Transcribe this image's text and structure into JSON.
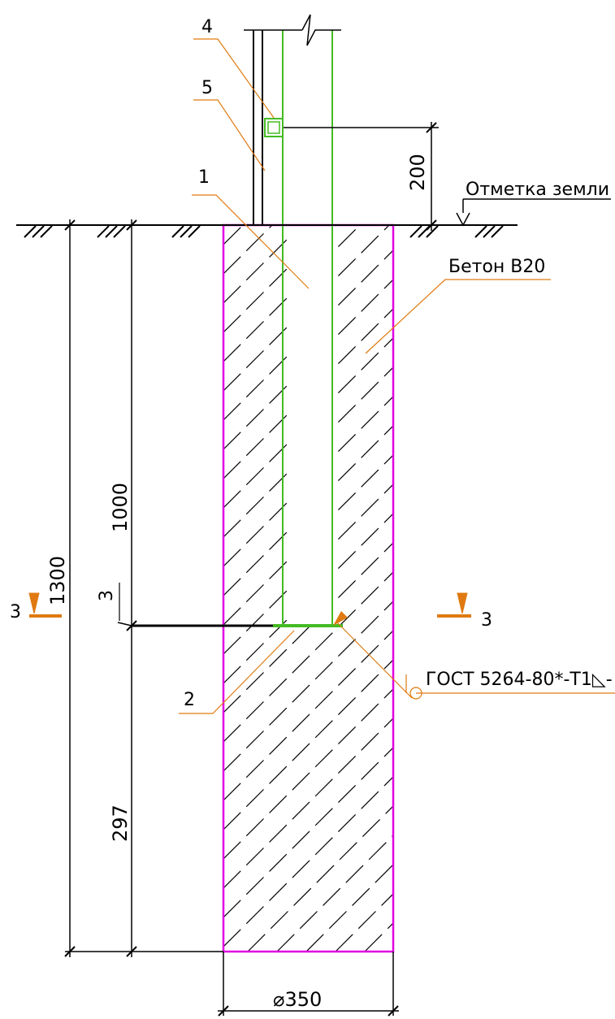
{
  "labels": {
    "callout_1": "1",
    "callout_2": "2",
    "callout_3": "3",
    "callout_4": "4",
    "callout_5": "5",
    "section_left": "3",
    "section_right": "3"
  },
  "dimensions": {
    "height_above_ground": "200",
    "embed_depth": "1000",
    "total_depth": "1300",
    "below_plate": "297",
    "diameter": "⌀350"
  },
  "notes": {
    "ground_level": "Отметка земли",
    "concrete": "Бетон В20",
    "weld": "ГОСТ 5264-80*-Т1◺-"
  },
  "colors": {
    "foundation_outline": "#e000e0",
    "post": "#44bb22",
    "leader": "#e07a10",
    "section_marker": "#e07a10",
    "ink": "#000000"
  }
}
